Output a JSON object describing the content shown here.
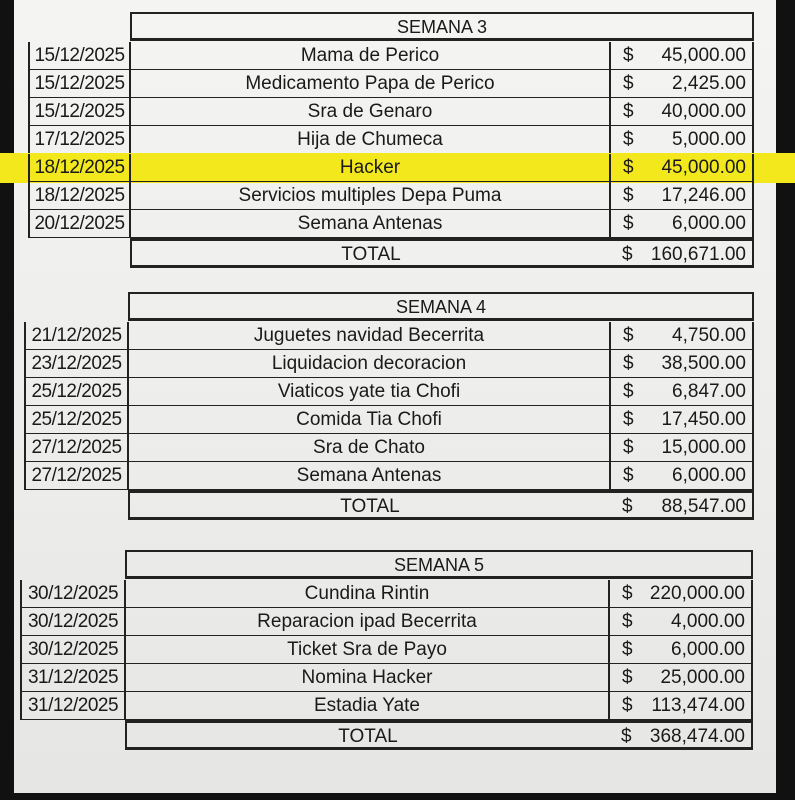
{
  "highlight_color": "#f2e81c",
  "weeks": [
    {
      "title": "SEMANA 3",
      "rows": [
        {
          "date": "15/12/2025",
          "concept": "Mama de Perico",
          "currency": "$",
          "amount": "45,000.00"
        },
        {
          "date": "15/12/2025",
          "concept": "Medicamento Papa de Perico",
          "currency": "$",
          "amount": "2,425.00"
        },
        {
          "date": "15/12/2025",
          "concept": "Sra de Genaro",
          "currency": "$",
          "amount": "40,000.00"
        },
        {
          "date": "17/12/2025",
          "concept": "Hija de Chumeca",
          "currency": "$",
          "amount": "5,000.00"
        },
        {
          "date": "18/12/2025",
          "concept": "Hacker",
          "currency": "$",
          "amount": "45,000.00",
          "highlighted": true
        },
        {
          "date": "18/12/2025",
          "concept": "Servicios multiples Depa Puma",
          "currency": "$",
          "amount": "17,246.00"
        },
        {
          "date": "20/12/2025",
          "concept": "Semana Antenas",
          "currency": "$",
          "amount": "6,000.00"
        }
      ],
      "total_label": "TOTAL",
      "total_currency": "$",
      "total": "160,671.00"
    },
    {
      "title": "SEMANA 4",
      "rows": [
        {
          "date": "21/12/2025",
          "concept": "Juguetes navidad Becerrita",
          "currency": "$",
          "amount": "4,750.00"
        },
        {
          "date": "23/12/2025",
          "concept": "Liquidacion decoracion",
          "currency": "$",
          "amount": "38,500.00"
        },
        {
          "date": "25/12/2025",
          "concept": "Viaticos yate tia Chofi",
          "currency": "$",
          "amount": "6,847.00"
        },
        {
          "date": "25/12/2025",
          "concept": "Comida Tia Chofi",
          "currency": "$",
          "amount": "17,450.00"
        },
        {
          "date": "27/12/2025",
          "concept": "Sra de Chato",
          "currency": "$",
          "amount": "15,000.00"
        },
        {
          "date": "27/12/2025",
          "concept": "Semana Antenas",
          "currency": "$",
          "amount": "6,000.00"
        }
      ],
      "total_label": "TOTAL",
      "total_currency": "$",
      "total": "88,547.00"
    },
    {
      "title": "SEMANA 5",
      "rows": [
        {
          "date": "30/12/2025",
          "concept": "Cundina Rintin",
          "currency": "$",
          "amount": "220,000.00"
        },
        {
          "date": "30/12/2025",
          "concept": "Reparacion ipad Becerrita",
          "currency": "$",
          "amount": "4,000.00"
        },
        {
          "date": "30/12/2025",
          "concept": "Ticket Sra de Payo",
          "currency": "$",
          "amount": "6,000.00"
        },
        {
          "date": "31/12/2025",
          "concept": "Nomina Hacker",
          "currency": "$",
          "amount": "25,000.00"
        },
        {
          "date": "31/12/2025",
          "concept": "Estadia Yate",
          "currency": "$",
          "amount": "113,474.00"
        }
      ],
      "total_label": "TOTAL",
      "total_currency": "$",
      "total": "368,474.00"
    }
  ]
}
